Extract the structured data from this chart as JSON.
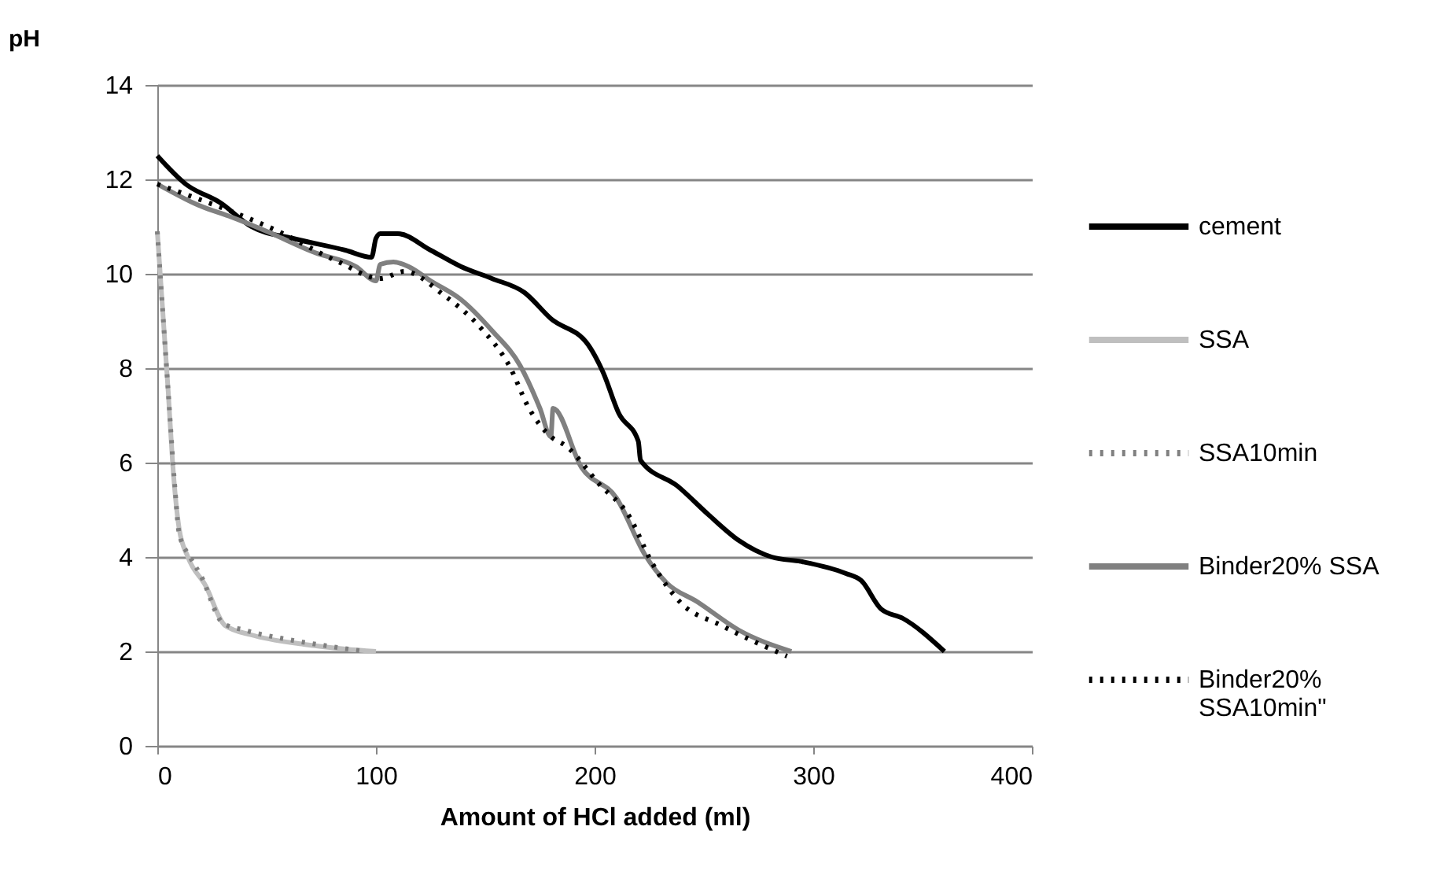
{
  "chart_data": {
    "type": "line",
    "xlabel": "Amount of HCl added (ml)",
    "ylabel": "pH",
    "xlim": [
      0,
      400
    ],
    "xticks": [
      0,
      100,
      200,
      300,
      400
    ],
    "ylim": [
      0,
      14
    ],
    "yticks": [
      0,
      2,
      4,
      6,
      8,
      10,
      12,
      14
    ],
    "grid": "y",
    "legend": "right",
    "marker": "none",
    "series": [
      {
        "name": "cement",
        "color": "#000000",
        "line_style": "solid",
        "x": [
          0,
          13,
          29,
          43,
          62,
          86,
          98,
          100,
          102,
          110,
          125,
          139,
          153,
          168,
          180,
          197,
          204,
          211,
          220,
          221,
          238,
          252,
          266,
          281,
          295,
          315,
          322,
          331,
          341,
          360
        ],
        "values": [
          12.5,
          11.9,
          11.5,
          11.0,
          10.75,
          10.5,
          10.35,
          10.75,
          10.85,
          10.85,
          10.5,
          10.15,
          9.9,
          9.6,
          9.05,
          8.5,
          7.9,
          7.05,
          6.45,
          6.05,
          5.5,
          4.9,
          4.35,
          4.0,
          3.9,
          3.65,
          3.5,
          2.9,
          2.7,
          2.0
        ]
      },
      {
        "name": "SSA",
        "color": "#bfbfbf",
        "line_style": "solid",
        "x": [
          0,
          5,
          7,
          10,
          14,
          22,
          31,
          43,
          67,
          86,
          100
        ],
        "values": [
          10.9,
          7.5,
          6.0,
          4.6,
          4.0,
          3.4,
          2.55,
          2.35,
          2.15,
          2.05,
          2.0
        ]
      },
      {
        "name": "SSA10min",
        "color": "#808080",
        "line_style": "dotted",
        "x": [
          0,
          5,
          8,
          10,
          15,
          20,
          30,
          40,
          60,
          80,
          95
        ],
        "values": [
          10.9,
          7.5,
          5.5,
          4.5,
          4.0,
          3.6,
          2.6,
          2.45,
          2.25,
          2.1,
          2.0
        ]
      },
      {
        "name": "Binder20% SSA",
        "color": "#808080",
        "line_style": "solid",
        "x": [
          0,
          19,
          34,
          50,
          72,
          91,
          100,
          102,
          108,
          115,
          125,
          139,
          153,
          166,
          175,
          180,
          181,
          194,
          210,
          223,
          233,
          247,
          266,
          290
        ],
        "values": [
          11.9,
          11.45,
          11.2,
          10.9,
          10.45,
          10.15,
          9.85,
          10.2,
          10.25,
          10.15,
          9.85,
          9.45,
          8.8,
          8.05,
          7.15,
          6.55,
          7.15,
          5.9,
          5.25,
          4.05,
          3.45,
          3.05,
          2.45,
          2.0
        ]
      },
      {
        "name": "Binder20% SSA10min\"",
        "color": "#000000",
        "line_style": "dotted",
        "x": [
          0,
          12,
          43,
          53,
          83,
          102,
          113,
          131,
          148,
          161,
          170,
          180,
          187,
          202,
          216,
          226,
          239,
          258,
          288
        ],
        "values": [
          11.9,
          11.7,
          11.15,
          10.95,
          10.25,
          9.9,
          10.05,
          9.55,
          8.85,
          8.05,
          7.15,
          6.55,
          6.35,
          5.55,
          4.85,
          3.9,
          3.05,
          2.55,
          1.9
        ]
      }
    ]
  }
}
